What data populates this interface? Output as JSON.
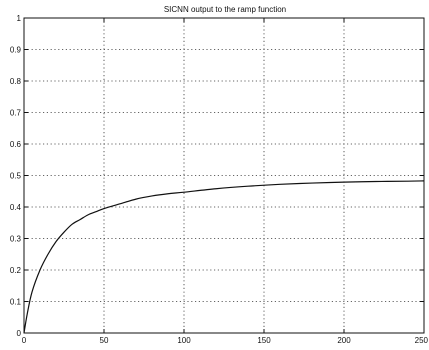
{
  "chart_data": {
    "type": "line",
    "title": "SICNN output to the ramp function",
    "xlabel": "",
    "ylabel": "",
    "xlim": [
      0,
      250
    ],
    "ylim": [
      0,
      1
    ],
    "grid": true,
    "x_ticks": [
      0,
      50,
      100,
      150,
      200,
      250
    ],
    "x_tick_labels": [
      "0",
      "50",
      "100",
      "150",
      "200",
      "250"
    ],
    "y_ticks": [
      0,
      0.1,
      0.2,
      0.3,
      0.4,
      0.5,
      0.6,
      0.7,
      0.8,
      0.9,
      1
    ],
    "y_tick_labels": [
      "0",
      "0.1",
      "0.2",
      "0.3",
      "0.4",
      "0.5",
      "0.6",
      "0.7",
      "0.8",
      "0.9",
      "1"
    ],
    "series": [
      {
        "x": [
          0,
          2,
          5,
          10,
          15,
          20,
          25,
          30,
          35,
          40,
          45,
          50,
          60,
          70,
          80,
          90,
          100,
          120,
          140,
          160,
          180,
          200,
          220,
          240,
          250
        ],
        "y": [
          0,
          0.06,
          0.13,
          0.2,
          0.25,
          0.29,
          0.32,
          0.345,
          0.36,
          0.375,
          0.385,
          0.395,
          0.41,
          0.425,
          0.435,
          0.442,
          0.447,
          0.458,
          0.466,
          0.472,
          0.476,
          0.479,
          0.481,
          0.482,
          0.483
        ],
        "color": "#111111"
      }
    ]
  }
}
